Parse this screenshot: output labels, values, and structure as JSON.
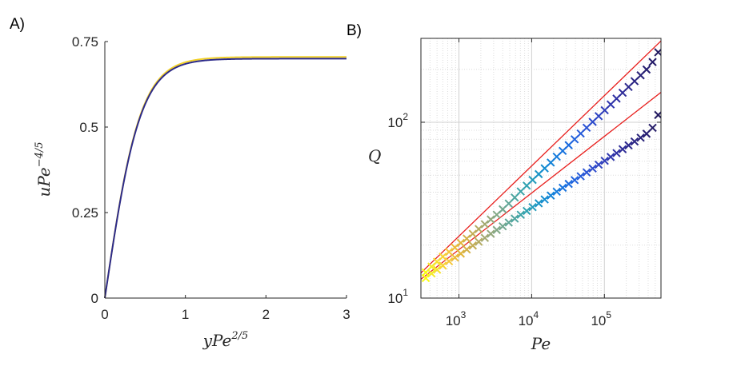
{
  "chart_data": [
    {
      "panel_label": "A)",
      "type": "line",
      "xlabel": {
        "base": "yPe",
        "sup": "2/5"
      },
      "ylabel": {
        "base": "uPe",
        "sup": "−4/5"
      },
      "xlim": [
        0,
        3
      ],
      "ylim": [
        0,
        0.75
      ],
      "xticks": [
        0,
        1,
        2,
        3
      ],
      "xtick_labels": [
        "0",
        "1",
        "2",
        "3"
      ],
      "yticks": [
        0,
        0.25,
        0.5,
        0.75
      ],
      "ytick_labels": [
        "0",
        "0.25",
        "0.5",
        "0.75"
      ],
      "grid": false,
      "series": [
        {
          "name": "profile-yellow",
          "color": "#f2d12a",
          "asymptote": 0.705,
          "rate": 2.25,
          "x_end": 3
        },
        {
          "name": "profile-blue",
          "color": "#2c2a8a",
          "asymptote": 0.7,
          "rate": 2.25,
          "x_end": 3
        }
      ]
    },
    {
      "panel_label": "B)",
      "type": "scatter",
      "scale": "loglog",
      "xlabel": "Pe",
      "ylabel": "Q",
      "xlim": [
        300,
        600000
      ],
      "ylim": [
        10,
        300
      ],
      "xticks": [
        1000,
        10000,
        100000
      ],
      "xtick_labels": [
        {
          "base": "10",
          "exp": "3"
        },
        {
          "base": "10",
          "exp": "4"
        },
        {
          "base": "10",
          "exp": "5"
        }
      ],
      "yticks": [
        10,
        100
      ],
      "ytick_labels": [
        {
          "base": "10",
          "exp": "1"
        },
        {
          "base": "10",
          "exp": "2"
        }
      ],
      "grid": true,
      "fit_lines": [
        {
          "name": "fit-upper",
          "color": "#e8201e",
          "points": [
            [
              300,
              13.9
            ],
            [
              600000,
              290
            ]
          ]
        },
        {
          "name": "fit-lower",
          "color": "#e8201e",
          "points": [
            [
              300,
              12.8
            ],
            [
              600000,
              148
            ]
          ]
        }
      ],
      "series": [
        {
          "name": "upper",
          "x": [
            350,
            420,
            500,
            600,
            730,
            880,
            1060,
            1280,
            1550,
            1870,
            2270,
            2740,
            3310,
            4000,
            4840,
            5850,
            7070,
            8550,
            10300,
            12500,
            15100,
            18300,
            22100,
            26700,
            32300,
            39000,
            47200,
            57000,
            69000,
            83400,
            101000,
            122000,
            147000,
            178000,
            215000,
            260000,
            315000,
            380000,
            460000,
            550000
          ],
          "y": [
            14.0,
            15.1,
            16.1,
            17.2,
            18.3,
            19.4,
            20.6,
            21.8,
            23.2,
            24.7,
            26.3,
            28.0,
            29.8,
            32.0,
            34.5,
            37.3,
            40.4,
            43.6,
            47.0,
            50.7,
            54.7,
            59.0,
            63.7,
            68.7,
            74.1,
            80.0,
            86.3,
            93.1,
            100.5,
            108.4,
            117.0,
            126.3,
            136.3,
            147.1,
            158.7,
            171.3,
            184.9,
            199.5,
            220.0,
            250.0
          ]
        },
        {
          "name": "lower",
          "x": [
            350,
            420,
            500,
            600,
            730,
            880,
            1060,
            1280,
            1550,
            1870,
            2270,
            2740,
            3310,
            4000,
            4840,
            5850,
            7070,
            8550,
            10300,
            12500,
            15100,
            18300,
            22100,
            26700,
            32300,
            39000,
            47200,
            57000,
            69000,
            83400,
            101000,
            122000,
            147000,
            178000,
            215000,
            260000,
            315000,
            380000,
            460000,
            550000
          ],
          "y": [
            13.0,
            13.8,
            14.5,
            15.3,
            16.2,
            17.0,
            17.9,
            18.9,
            19.9,
            20.9,
            22.0,
            23.2,
            24.4,
            25.6,
            26.9,
            28.3,
            29.8,
            31.3,
            32.9,
            34.6,
            36.4,
            38.3,
            40.3,
            42.4,
            44.6,
            46.9,
            49.3,
            51.9,
            54.6,
            57.4,
            60.4,
            63.5,
            66.8,
            70.3,
            73.9,
            77.7,
            81.7,
            86.0,
            93.0,
            110.0
          ]
        }
      ],
      "marker_colors": [
        "#f9fb0e",
        "#f4ec2a",
        "#f6e12e",
        "#f8d436",
        "#f5c73d",
        "#ecbb3b",
        "#e1b53a",
        "#d2b047",
        "#c3ad55",
        "#b4ab63",
        "#a4a970",
        "#94a87c",
        "#83a886",
        "#72a78f",
        "#60a697",
        "#4ea59f",
        "#3ca3a7",
        "#2ea1b0",
        "#239bbb",
        "#1a94c6",
        "#148cd0",
        "#1383d7",
        "#147bdc",
        "#1773de",
        "#1b6bdf",
        "#2163de",
        "#265bda",
        "#2a53d4",
        "#2d4bcc",
        "#2f44c3",
        "#303db9",
        "#3037ae",
        "#2f31a3",
        "#2e2c98",
        "#2c288d",
        "#2a2483",
        "#282179",
        "#261e70",
        "#241b68",
        "#221960"
      ]
    }
  ]
}
